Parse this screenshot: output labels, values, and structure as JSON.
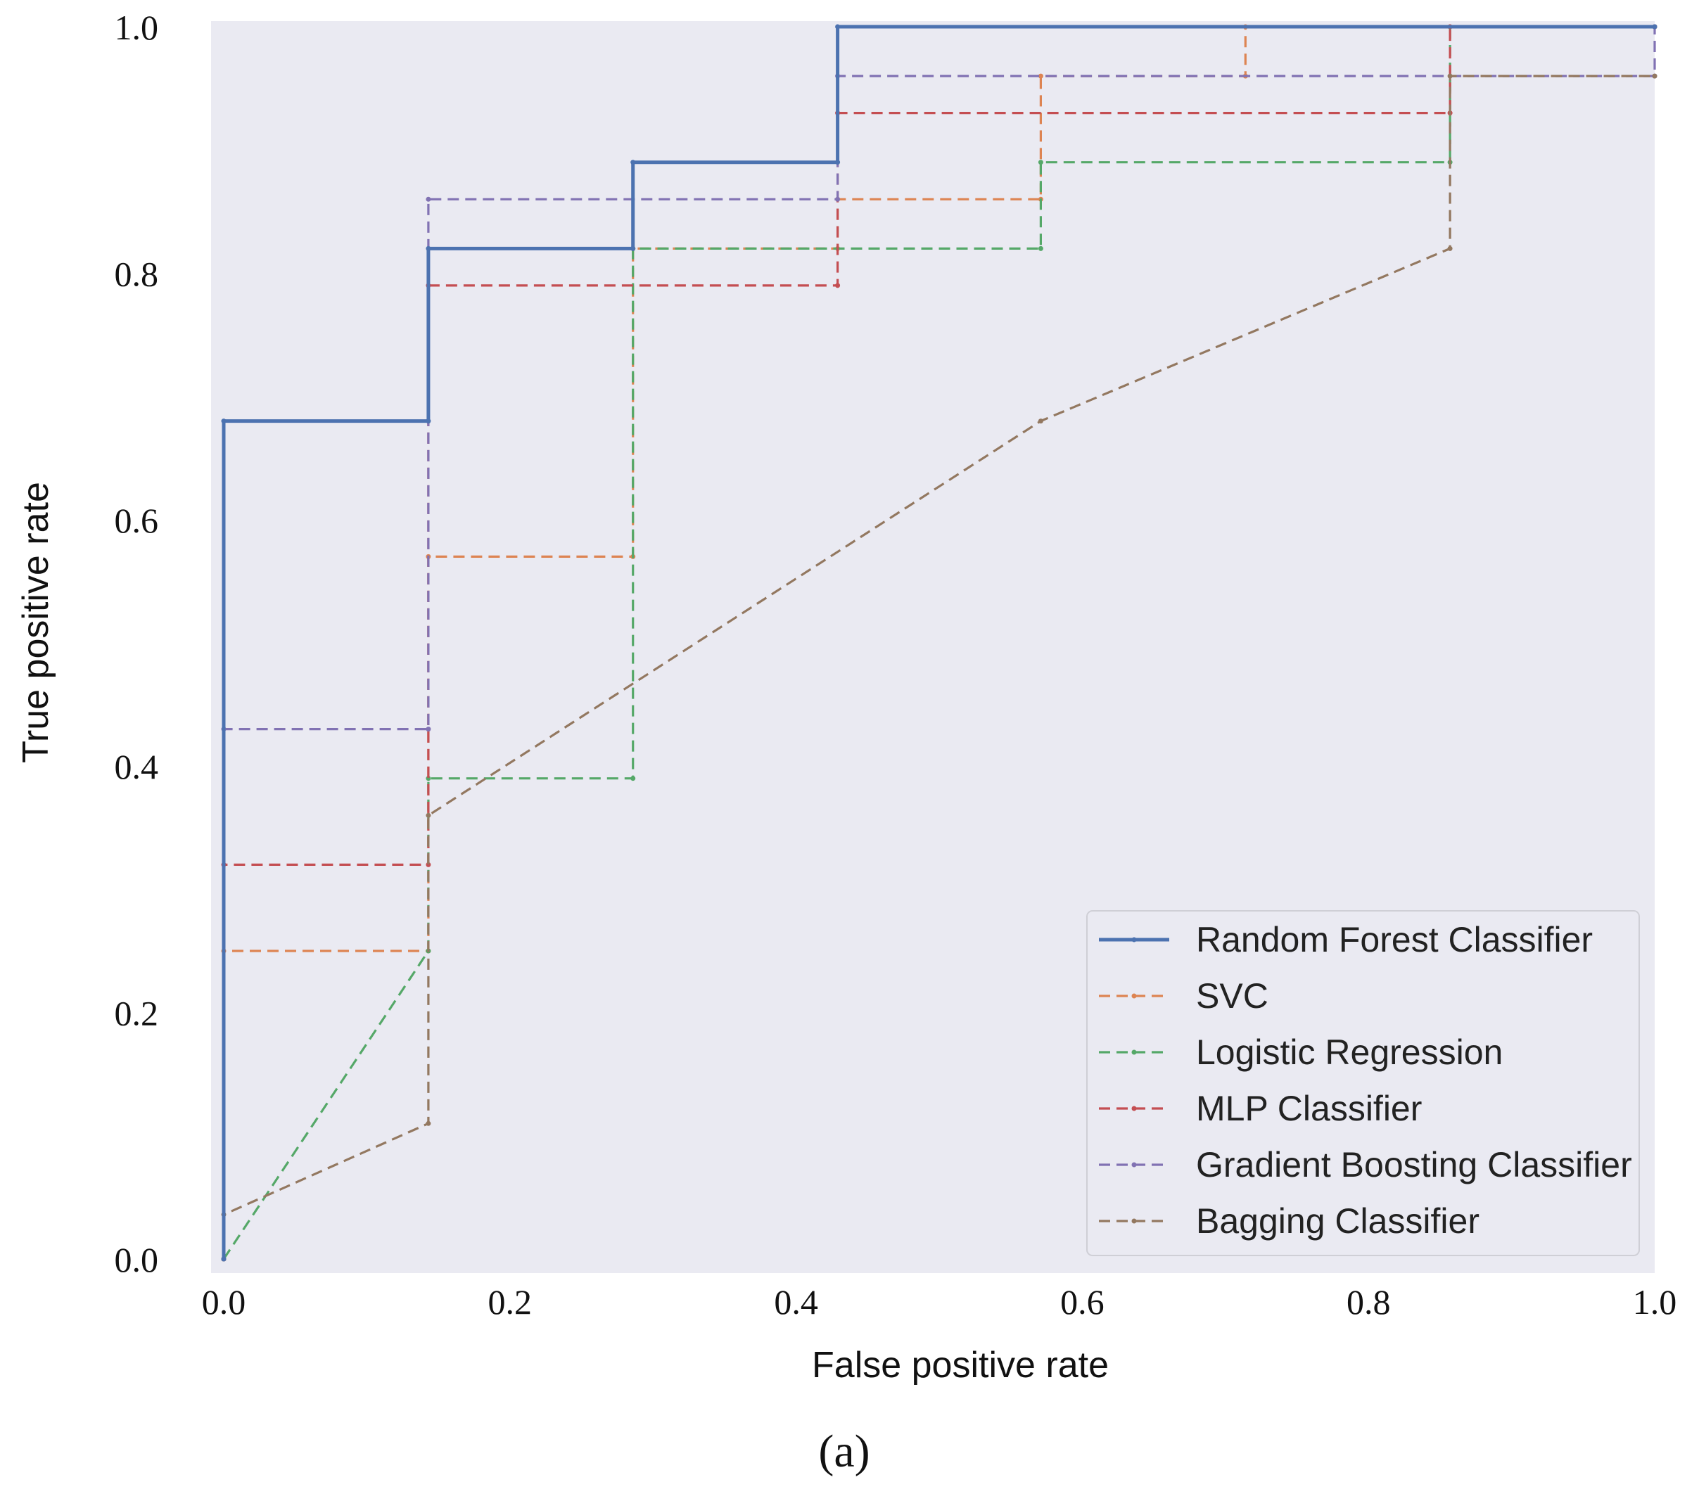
{
  "chart_data": {
    "type": "line",
    "title": "",
    "xlabel": "False positive rate",
    "ylabel": "True positive rate",
    "xlim": [
      0.0,
      1.0
    ],
    "ylim": [
      0.0,
      1.0
    ],
    "xticks": [
      "0.0",
      "0.2",
      "0.4",
      "0.6",
      "0.8",
      "1.0"
    ],
    "yticks": [
      "0.0",
      "0.2",
      "0.4",
      "0.6",
      "0.8",
      "1.0"
    ],
    "grid": false,
    "legend_position": "lower-right",
    "caption": "(a)",
    "series": [
      {
        "name": "Random Forest Classifier",
        "color": "#4c72b0",
        "style": "solid",
        "points": [
          [
            0,
            0
          ],
          [
            0,
            0.68
          ],
          [
            0.143,
            0.68
          ],
          [
            0.143,
            0.82
          ],
          [
            0.286,
            0.82
          ],
          [
            0.286,
            0.89
          ],
          [
            0.429,
            0.89
          ],
          [
            0.429,
            1.0
          ],
          [
            1.0,
            1.0
          ]
        ]
      },
      {
        "name": "SVC",
        "color": "#dd8452",
        "style": "dashed",
        "points": [
          [
            0,
            0
          ],
          [
            0,
            0.25
          ],
          [
            0.143,
            0.25
          ],
          [
            0.143,
            0.57
          ],
          [
            0.286,
            0.57
          ],
          [
            0.286,
            0.82
          ],
          [
            0.429,
            0.82
          ],
          [
            0.429,
            0.86
          ],
          [
            0.571,
            0.86
          ],
          [
            0.571,
            0.96
          ],
          [
            0.714,
            0.96
          ],
          [
            0.714,
            1.0
          ],
          [
            1.0,
            1.0
          ]
        ]
      },
      {
        "name": "Logistic Regression",
        "color": "#55a868",
        "style": "dashed",
        "points": [
          [
            0,
            0
          ],
          [
            0.143,
            0.25
          ],
          [
            0.143,
            0.39
          ],
          [
            0.286,
            0.39
          ],
          [
            0.286,
            0.82
          ],
          [
            0.571,
            0.82
          ],
          [
            0.571,
            0.89
          ],
          [
            0.857,
            0.89
          ],
          [
            0.857,
            1.0
          ],
          [
            1.0,
            1.0
          ]
        ]
      },
      {
        "name": "MLP Classifier",
        "color": "#c44e52",
        "style": "dashed",
        "points": [
          [
            0,
            0
          ],
          [
            0,
            0.32
          ],
          [
            0.143,
            0.32
          ],
          [
            0.143,
            0.79
          ],
          [
            0.429,
            0.79
          ],
          [
            0.429,
            0.93
          ],
          [
            0.857,
            0.93
          ],
          [
            0.857,
            1.0
          ],
          [
            1.0,
            1.0
          ]
        ]
      },
      {
        "name": "Gradient Boosting Classifier",
        "color": "#8172b3",
        "style": "dashed",
        "points": [
          [
            0,
            0
          ],
          [
            0,
            0.43
          ],
          [
            0.143,
            0.43
          ],
          [
            0.143,
            0.86
          ],
          [
            0.429,
            0.86
          ],
          [
            0.429,
            0.96
          ],
          [
            1.0,
            0.96
          ],
          [
            1.0,
            1.0
          ]
        ]
      },
      {
        "name": "Bagging Classifier",
        "color": "#937860",
        "style": "dashed",
        "points": [
          [
            0,
            0
          ],
          [
            0,
            0.036
          ],
          [
            0.143,
            0.11
          ],
          [
            0.143,
            0.36
          ],
          [
            0.571,
            0.68
          ],
          [
            0.857,
            0.82
          ],
          [
            0.857,
            0.96
          ],
          [
            1.0,
            0.96
          ]
        ]
      }
    ]
  }
}
